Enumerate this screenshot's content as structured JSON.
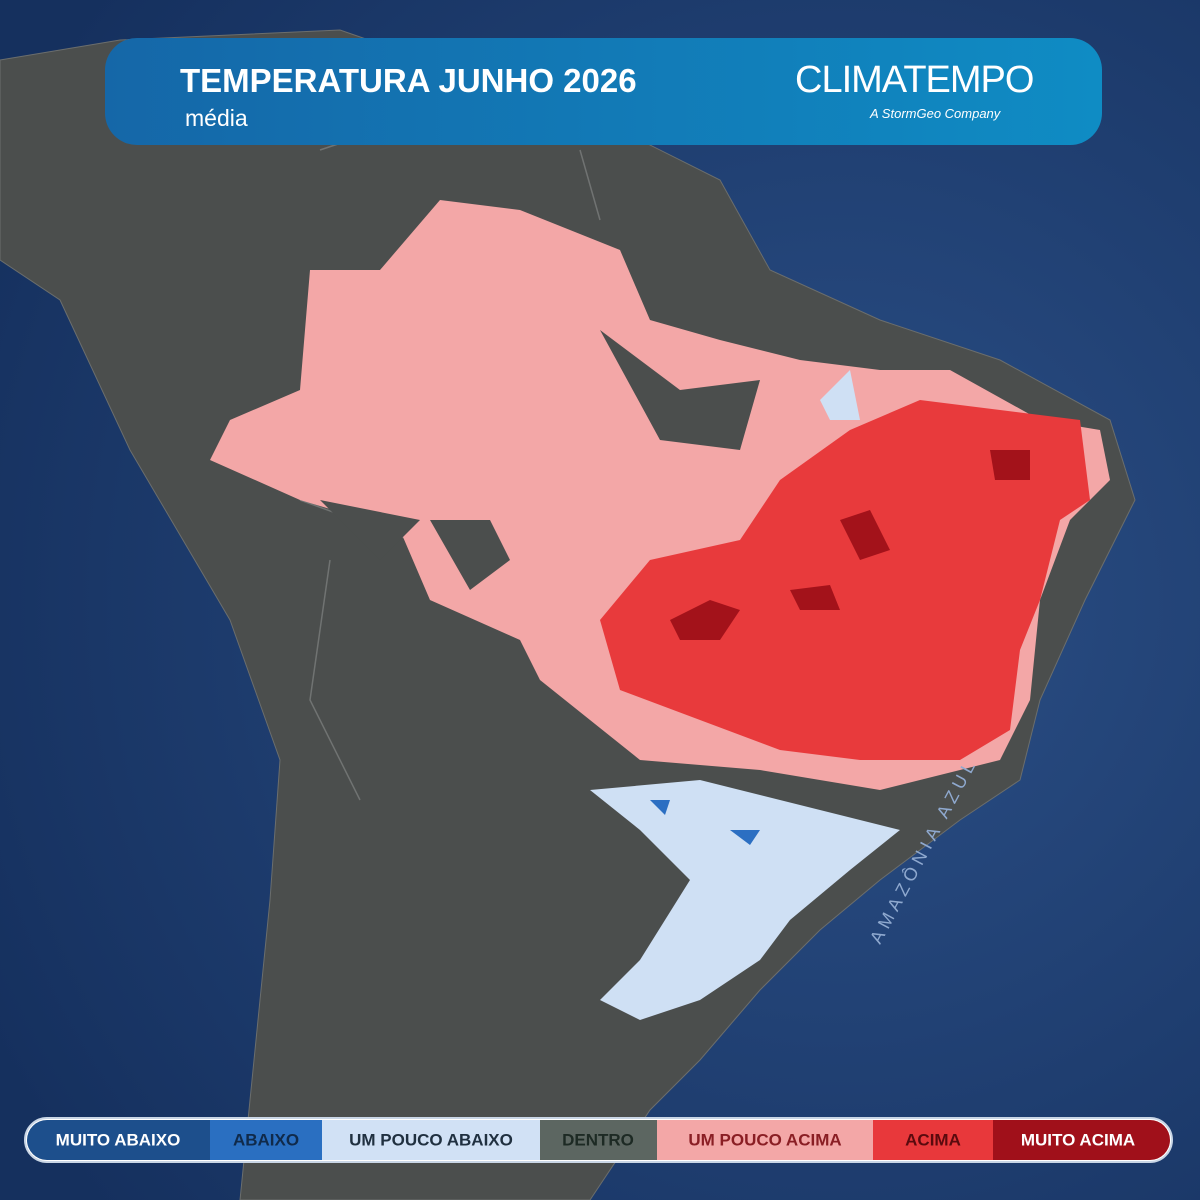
{
  "header": {
    "title": "TEMPERATURA JUNHO 2026",
    "subtitle": "média",
    "logo": "CLIMATEMPO",
    "logo_tagline": "A StormGeo Company"
  },
  "map": {
    "annotation": "AMAZÔNIA AZUL"
  },
  "legend": {
    "items": [
      "MUITO ABAIXO",
      "ABAIXO",
      "UM POUCO ABAIXO",
      "DENTRO",
      "UM POUCO ACIMA",
      "ACIMA",
      "MUITO ACIMA"
    ]
  }
}
